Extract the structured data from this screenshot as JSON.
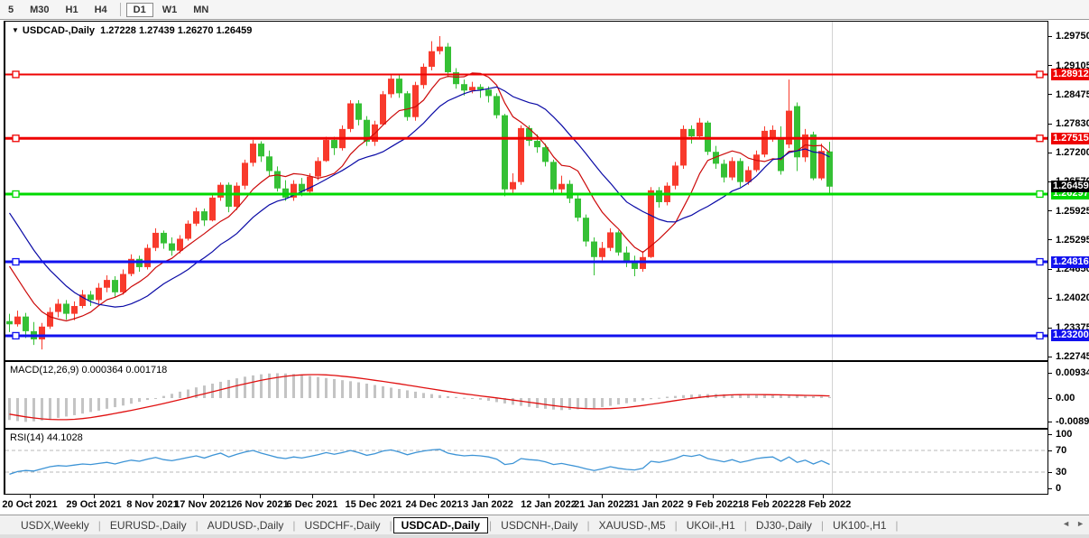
{
  "toolbar": {
    "timeframes": [
      "5",
      "M30",
      "H1",
      "H4",
      "D1",
      "W1",
      "MN"
    ],
    "active_timeframe": "D1"
  },
  "chart": {
    "dropdown_icon": "▼",
    "title_symbol": "USDCAD-,Daily",
    "title_values": "1.27228 1.27439 1.26270 1.26459"
  },
  "tabs": {
    "items": [
      "USDX,Weekly",
      "EURUSD-,Daily",
      "AUDUSD-,Daily",
      "USDCHF-,Daily",
      "USDCAD-,Daily",
      "USDCNH-,Daily",
      "XAUUSD-,M5",
      "UKOil-,H1",
      "DJ30-,Daily",
      "UK100-,H1"
    ],
    "active": "USDCAD-,Daily",
    "scroll_left_icon": "◄",
    "scroll_right_icon": "►"
  },
  "chart_data": {
    "type": "candlestick",
    "symbol": "USDCAD-,Daily",
    "title": "USDCAD-,Daily 1.27228 1.27439 1.26270 1.26459",
    "up_color_convention": "red-up-green-down",
    "colors": {
      "bull": "#f83a2c",
      "bear": "#35c035",
      "ma_fast": "#cc0a0a",
      "ma_slow": "#0a0aa6",
      "level_red": "#ee0202",
      "level_green": "#00d900",
      "level_blue": "#1111ee",
      "macd_hist": "#c4c4c4",
      "macd_signal": "#e01010",
      "rsi_line": "#3d94d6",
      "current_tag_bg": "#000000",
      "grid_dash": "#b8b8b8",
      "last_bar_line": "#d2d2d2"
    },
    "y_domain": {
      "top_price": 1.2975,
      "bottom_price": 1.22745
    },
    "price_axis_ticks": [
      "1.29750",
      "1.29105",
      "1.28475",
      "1.27830",
      "1.27200",
      "1.26570",
      "1.25925",
      "1.25295",
      "1.24650",
      "1.24020",
      "1.23375",
      "1.22745"
    ],
    "x_axis": {
      "labels": [
        "20 Oct 2021",
        "29 Oct 2021",
        "8 Nov 2021",
        "17 Nov 2021",
        "26 Nov 2021",
        "6 Dec 2021",
        "15 Dec 2021",
        "24 Dec 2021",
        "3 Jan 2022",
        "12 Jan 2022",
        "21 Jan 2022",
        "31 Jan 2022",
        "9 Feb 2022",
        "18 Feb 2022",
        "28 Feb 2022"
      ],
      "tick_x": [
        29,
        100,
        165,
        221,
        284,
        342,
        410,
        477,
        537,
        604,
        663,
        723,
        786,
        845,
        908
      ]
    },
    "levels": [
      {
        "price": 1.28912,
        "label": "1.28912",
        "color": "#ee0202",
        "width": 2
      },
      {
        "price": 1.27515,
        "label": "1.27515",
        "color": "#ee0202",
        "width": 3
      },
      {
        "price": 1.26297,
        "label": "1.26297",
        "color": "#00d900",
        "width": 3
      },
      {
        "price": 1.24816,
        "label": "1.24816",
        "color": "#1111ee",
        "width": 3
      },
      {
        "price": 1.232,
        "label": "1.23200",
        "color": "#1111ee",
        "width": 3
      }
    ],
    "current_price": {
      "price": 1.26459,
      "label": "1.26459"
    },
    "candles": [
      [
        1.2352,
        1.2368,
        1.2328,
        1.2345
      ],
      [
        1.2345,
        1.2375,
        1.234,
        1.2362
      ],
      [
        1.2362,
        1.237,
        1.2315,
        1.233
      ],
      [
        1.233,
        1.235,
        1.23,
        1.2312
      ],
      [
        1.2312,
        1.2348,
        1.229,
        1.234
      ],
      [
        1.234,
        1.2382,
        1.2335,
        1.2372
      ],
      [
        1.2372,
        1.24,
        1.236,
        1.239
      ],
      [
        1.239,
        1.2398,
        1.2355,
        1.2368
      ],
      [
        1.2368,
        1.2395,
        1.2354,
        1.2385
      ],
      [
        1.2385,
        1.242,
        1.238,
        1.241
      ],
      [
        1.241,
        1.2418,
        1.2385,
        1.2398
      ],
      [
        1.2398,
        1.2435,
        1.239,
        1.2425
      ],
      [
        1.2425,
        1.2452,
        1.2415,
        1.2442
      ],
      [
        1.2442,
        1.245,
        1.2405,
        1.2415
      ],
      [
        1.2415,
        1.2465,
        1.241,
        1.2455
      ],
      [
        1.2455,
        1.2498,
        1.245,
        1.2488
      ],
      [
        1.2488,
        1.2495,
        1.246,
        1.247
      ],
      [
        1.247,
        1.252,
        1.2465,
        1.2512
      ],
      [
        1.2512,
        1.2555,
        1.2505,
        1.2545
      ],
      [
        1.2545,
        1.255,
        1.251,
        1.2522
      ],
      [
        1.2522,
        1.2535,
        1.2495,
        1.2506
      ],
      [
        1.2506,
        1.254,
        1.25,
        1.2532
      ],
      [
        1.2532,
        1.2572,
        1.2528,
        1.2565
      ],
      [
        1.2565,
        1.26,
        1.256,
        1.2592
      ],
      [
        1.2592,
        1.2598,
        1.256,
        1.2572
      ],
      [
        1.2572,
        1.263,
        1.257,
        1.2622
      ],
      [
        1.2622,
        1.2655,
        1.2615,
        1.265
      ],
      [
        1.265,
        1.2655,
        1.259,
        1.2602
      ],
      [
        1.2602,
        1.2655,
        1.2595,
        1.2648
      ],
      [
        1.2648,
        1.2705,
        1.264,
        1.2698
      ],
      [
        1.2698,
        1.2748,
        1.269,
        1.274
      ],
      [
        1.274,
        1.2745,
        1.27,
        1.2712
      ],
      [
        1.2712,
        1.2725,
        1.267,
        1.268
      ],
      [
        1.268,
        1.269,
        1.2635,
        1.2642
      ],
      [
        1.2642,
        1.266,
        1.2615,
        1.2622
      ],
      [
        1.2622,
        1.266,
        1.2615,
        1.2652
      ],
      [
        1.2652,
        1.2665,
        1.2625,
        1.2635
      ],
      [
        1.2635,
        1.2675,
        1.263,
        1.2668
      ],
      [
        1.2668,
        1.271,
        1.266,
        1.2702
      ],
      [
        1.2702,
        1.2755,
        1.27,
        1.2748
      ],
      [
        1.2748,
        1.2755,
        1.2715,
        1.273
      ],
      [
        1.273,
        1.278,
        1.2725,
        1.2772
      ],
      [
        1.2772,
        1.2835,
        1.2765,
        1.2828
      ],
      [
        1.2828,
        1.2835,
        1.278,
        1.2792
      ],
      [
        1.2792,
        1.28,
        1.2735,
        1.2744
      ],
      [
        1.2744,
        1.279,
        1.2735,
        1.2782
      ],
      [
        1.2782,
        1.2855,
        1.278,
        1.2848
      ],
      [
        1.2848,
        1.289,
        1.284,
        1.2882
      ],
      [
        1.2882,
        1.289,
        1.284,
        1.285
      ],
      [
        1.285,
        1.2855,
        1.279,
        1.2798
      ],
      [
        1.2798,
        1.2875,
        1.279,
        1.2868
      ],
      [
        1.2868,
        1.2915,
        1.286,
        1.2908
      ],
      [
        1.2908,
        1.2964,
        1.29,
        1.2942
      ],
      [
        1.2942,
        1.2975,
        1.2935,
        1.2952
      ],
      [
        1.2952,
        1.296,
        1.2885,
        1.2896
      ],
      [
        1.2896,
        1.2905,
        1.286,
        1.287
      ],
      [
        1.287,
        1.288,
        1.2845,
        1.2856
      ],
      [
        1.2856,
        1.2875,
        1.285,
        1.2864
      ],
      [
        1.2864,
        1.287,
        1.284,
        1.2858
      ],
      [
        1.2858,
        1.2865,
        1.283,
        1.2844
      ],
      [
        1.2844,
        1.285,
        1.2795,
        1.2802
      ],
      [
        1.2802,
        1.2805,
        1.2625,
        1.264
      ],
      [
        1.264,
        1.2675,
        1.263,
        1.2656
      ],
      [
        1.2656,
        1.278,
        1.265,
        1.2774
      ],
      [
        1.2774,
        1.278,
        1.2735,
        1.2746
      ],
      [
        1.2746,
        1.276,
        1.272,
        1.2732
      ],
      [
        1.2732,
        1.274,
        1.269,
        1.27
      ],
      [
        1.27,
        1.2705,
        1.263,
        1.264
      ],
      [
        1.264,
        1.267,
        1.263,
        1.2652
      ],
      [
        1.2652,
        1.266,
        1.261,
        1.262
      ],
      [
        1.262,
        1.2628,
        1.257,
        1.2578
      ],
      [
        1.2578,
        1.2585,
        1.2515,
        1.2526
      ],
      [
        1.2526,
        1.2535,
        1.2452,
        1.2492
      ],
      [
        1.2492,
        1.2525,
        1.2485,
        1.2512
      ],
      [
        1.2512,
        1.2555,
        1.2505,
        1.2546
      ],
      [
        1.2546,
        1.255,
        1.2495,
        1.2502
      ],
      [
        1.2502,
        1.2515,
        1.247,
        1.2484
      ],
      [
        1.2484,
        1.2495,
        1.245,
        1.2466
      ],
      [
        1.2466,
        1.2505,
        1.246,
        1.2492
      ],
      [
        1.2492,
        1.2645,
        1.249,
        1.2638
      ],
      [
        1.2638,
        1.2645,
        1.26,
        1.2612
      ],
      [
        1.2612,
        1.2655,
        1.2605,
        1.2648
      ],
      [
        1.2648,
        1.27,
        1.264,
        1.2692
      ],
      [
        1.2692,
        1.278,
        1.2685,
        1.2772
      ],
      [
        1.2772,
        1.278,
        1.274,
        1.2756
      ],
      [
        1.2756,
        1.2796,
        1.275,
        1.2786
      ],
      [
        1.2786,
        1.279,
        1.2715,
        1.2722
      ],
      [
        1.2722,
        1.2735,
        1.2685,
        1.2696
      ],
      [
        1.2696,
        1.2705,
        1.2655,
        1.2666
      ],
      [
        1.2666,
        1.271,
        1.266,
        1.2702
      ],
      [
        1.2702,
        1.2708,
        1.2645,
        1.2656
      ],
      [
        1.2656,
        1.269,
        1.265,
        1.2682
      ],
      [
        1.2682,
        1.2725,
        1.2678,
        1.2716
      ],
      [
        1.2716,
        1.2778,
        1.271,
        1.2768
      ],
      [
        1.2754,
        1.278,
        1.2744,
        1.277
      ],
      [
        1.2754,
        1.2778,
        1.2672,
        1.268
      ],
      [
        1.2738,
        1.288,
        1.273,
        1.2812
      ],
      [
        1.2822,
        1.283,
        1.268,
        1.271
      ],
      [
        1.271,
        1.2772,
        1.27,
        1.276
      ],
      [
        1.276,
        1.2766,
        1.266,
        1.2664
      ],
      [
        1.2664,
        1.274,
        1.266,
        1.2724
      ],
      [
        1.27228,
        1.27439,
        1.2627,
        1.26459
      ]
    ],
    "ma_fast_period": 8,
    "ma_slow_period": 16,
    "ma_pre_closes": [
      1.281,
      1.279,
      1.277,
      1.2745,
      1.272,
      1.2695,
      1.267,
      1.264,
      1.261,
      1.258,
      1.255,
      1.252,
      1.249,
      1.246,
      1.243,
      1.24
    ],
    "indicators": {
      "macd": {
        "label": "MACD(12,26,9)",
        "values_text": "0.000364 0.001718",
        "scale_ticks": [
          {
            "v": 0.009345,
            "label": "0.009345"
          },
          {
            "v": 0.0,
            "label": "0.00"
          },
          {
            "v": -0.008905,
            "label": "-0.00890"
          }
        ],
        "signal_pre": [
          -0.004,
          -0.0045,
          -0.005,
          -0.0055,
          -0.006,
          -0.0065,
          -0.007,
          -0.0075
        ],
        "histogram": [
          -0.0082,
          -0.0086,
          -0.0089,
          -0.0087,
          -0.0084,
          -0.008,
          -0.0074,
          -0.0069,
          -0.0064,
          -0.0058,
          -0.0052,
          -0.0047,
          -0.004,
          -0.0034,
          -0.0028,
          -0.0021,
          -0.0014,
          -0.0007,
          0.0,
          0.0008,
          0.0016,
          0.0024,
          0.0032,
          0.004,
          0.0047,
          0.0054,
          0.0061,
          0.0068,
          0.0074,
          0.008,
          0.0085,
          0.0089,
          0.0092,
          0.0093,
          0.0092,
          0.009,
          0.0087,
          0.0083,
          0.0079,
          0.0075,
          0.0071,
          0.0067,
          0.0063,
          0.0059,
          0.0054,
          0.0049,
          0.0044,
          0.0039,
          0.0034,
          0.0029,
          0.0024,
          0.0019,
          0.0015,
          0.0011,
          0.0007,
          0.0004,
          0.0001,
          -0.0002,
          -0.0006,
          -0.001,
          -0.0015,
          -0.002,
          -0.0025,
          -0.0029,
          -0.0033,
          -0.0037,
          -0.004,
          -0.0043,
          -0.0045,
          -0.0044,
          -0.0042,
          -0.004,
          -0.0038,
          -0.0034,
          -0.0029,
          -0.0024,
          -0.0019,
          -0.0014,
          -0.0009,
          -0.0004,
          0.0001,
          0.0005,
          0.0008,
          0.0011,
          0.0013,
          0.0014,
          0.0015,
          0.0015,
          0.0014,
          0.0013,
          0.0012,
          0.0012,
          0.0011,
          0.0011,
          0.001,
          0.001,
          0.0009,
          0.0009,
          0.0008,
          0.0007,
          0.0006,
          0.0004
        ]
      },
      "rsi": {
        "label": "RSI(14)",
        "value_text": "44.1028",
        "scale_ticks": [
          {
            "v": 100,
            "label": "100"
          },
          {
            "v": 70,
            "label": "70"
          },
          {
            "v": 30,
            "label": "30"
          },
          {
            "v": 0,
            "label": "0"
          }
        ],
        "level_lines": [
          70,
          30
        ],
        "values": [
          26,
          31,
          33,
          32,
          36,
          40,
          42,
          41,
          43,
          45,
          44,
          46,
          48,
          45,
          49,
          52,
          50,
          54,
          57,
          53,
          51,
          54,
          57,
          60,
          56,
          61,
          65,
          58,
          63,
          67,
          70,
          65,
          61,
          57,
          55,
          58,
          56,
          59,
          62,
          66,
          63,
          66,
          70,
          66,
          61,
          64,
          69,
          71,
          67,
          62,
          66,
          69,
          71,
          72,
          65,
          62,
          60,
          61,
          60,
          58,
          54,
          44,
          46,
          55,
          53,
          52,
          49,
          44,
          46,
          43,
          40,
          36,
          33,
          36,
          40,
          37,
          35,
          34,
          37,
          50,
          48,
          51,
          55,
          61,
          59,
          62,
          55,
          52,
          49,
          53,
          48,
          51,
          55,
          57,
          58,
          50,
          58,
          48,
          52,
          45,
          51,
          44.1
        ]
      }
    }
  }
}
